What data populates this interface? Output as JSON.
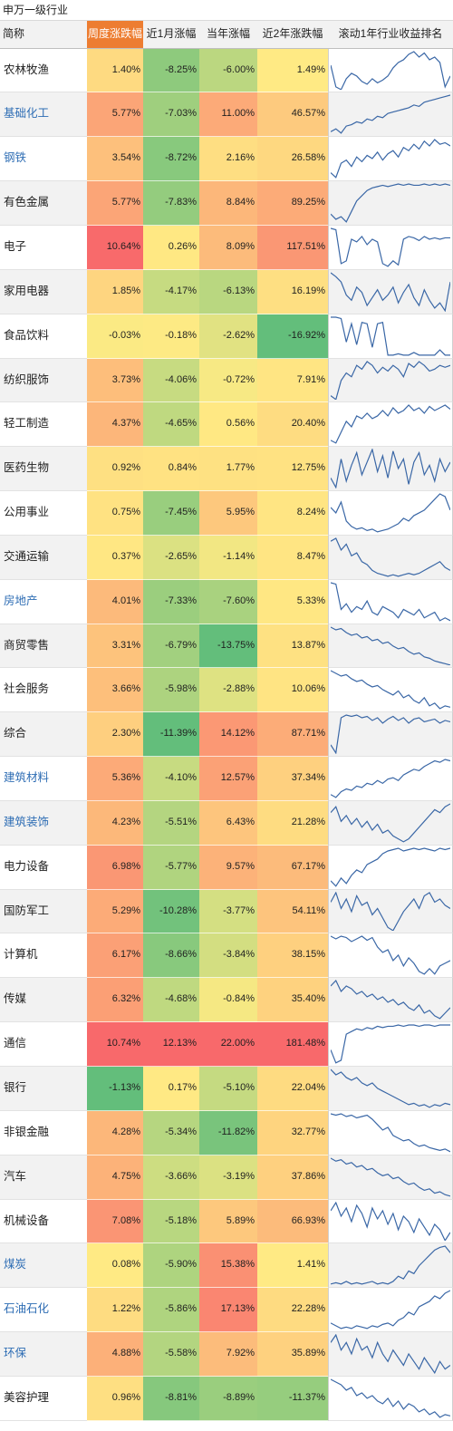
{
  "chart_data": {
    "type": "table",
    "title": "申万一级行业",
    "columns": [
      "简称",
      "周度涨跌幅",
      "近1月涨幅",
      "当年涨幅",
      "近2年涨跌幅",
      "滚动1年行业收益排名"
    ],
    "colors": {
      "scale_low": "#63BE7B",
      "scale_mid": "#FFEB84",
      "scale_high": "#F8696B",
      "header_highlight": "#ED7D31",
      "link_text": "#2E6DB4",
      "sparkline": "#3A67A6"
    },
    "rows": [
      {
        "name": "农林牧渔",
        "link": false,
        "values": [
          "1.40%",
          "-8.25%",
          "-6.00%",
          "1.49%"
        ],
        "rank_trend": [
          12,
          28,
          30,
          22,
          18,
          20,
          24,
          26,
          22,
          25,
          23,
          20,
          14,
          10,
          8,
          4,
          2,
          6,
          3,
          8,
          6,
          10,
          28,
          20
        ]
      },
      {
        "name": "基础化工",
        "link": true,
        "values": [
          "5.77%",
          "-7.03%",
          "11.00%",
          "46.57%"
        ],
        "rank_trend": [
          29,
          27,
          30,
          25,
          24,
          22,
          23,
          20,
          21,
          18,
          19,
          16,
          15,
          14,
          13,
          12,
          10,
          11,
          8,
          7,
          6,
          5,
          4,
          3
        ]
      },
      {
        "name": "钢铁",
        "link": true,
        "values": [
          "3.54%",
          "-8.72%",
          "2.16%",
          "26.58%"
        ],
        "rank_trend": [
          26,
          29,
          20,
          18,
          22,
          16,
          19,
          15,
          17,
          13,
          18,
          14,
          12,
          16,
          10,
          12,
          8,
          11,
          6,
          9,
          5,
          8,
          7,
          9
        ]
      },
      {
        "name": "有色金属",
        "link": false,
        "values": [
          "5.77%",
          "-7.83%",
          "8.84%",
          "89.25%"
        ],
        "rank_trend": [
          24,
          28,
          26,
          30,
          22,
          14,
          10,
          6,
          4,
          3,
          2,
          3,
          2,
          1,
          2,
          1,
          2,
          2,
          1,
          2,
          1,
          2,
          1,
          2
        ]
      },
      {
        "name": "电子",
        "link": false,
        "values": [
          "10.64%",
          "0.26%",
          "8.09%",
          "117.51%"
        ],
        "rank_trend": [
          2,
          3,
          28,
          26,
          10,
          12,
          8,
          14,
          10,
          12,
          28,
          30,
          26,
          29,
          10,
          8,
          9,
          11,
          8,
          10,
          9,
          10,
          9,
          9
        ]
      },
      {
        "name": "家用电器",
        "link": false,
        "values": [
          "1.85%",
          "-4.17%",
          "-6.13%",
          "16.19%"
        ],
        "rank_trend": [
          1,
          4,
          8,
          18,
          22,
          12,
          16,
          26,
          20,
          14,
          22,
          18,
          12,
          24,
          16,
          10,
          20,
          26,
          14,
          22,
          28,
          24,
          30,
          8
        ]
      },
      {
        "name": "食品饮料",
        "link": false,
        "values": [
          "-0.03%",
          "-0.18%",
          "-2.62%",
          "-16.92%"
        ],
        "rank_trend": [
          1,
          1,
          2,
          20,
          6,
          22,
          5,
          6,
          24,
          6,
          5,
          30,
          30,
          29,
          30,
          30,
          28,
          30,
          30,
          30,
          30,
          26,
          30,
          30
        ]
      },
      {
        "name": "纺织服饰",
        "link": false,
        "values": [
          "3.73%",
          "-4.06%",
          "-0.72%",
          "7.91%"
        ],
        "rank_trend": [
          28,
          30,
          20,
          16,
          18,
          12,
          14,
          10,
          12,
          16,
          13,
          15,
          12,
          14,
          18,
          11,
          13,
          10,
          12,
          15,
          14,
          12,
          13,
          12
        ]
      },
      {
        "name": "轻工制造",
        "link": false,
        "values": [
          "4.37%",
          "-4.65%",
          "0.56%",
          "20.40%"
        ],
        "rank_trend": [
          28,
          30,
          22,
          14,
          18,
          10,
          12,
          8,
          12,
          10,
          6,
          10,
          4,
          8,
          6,
          2,
          6,
          4,
          8,
          3,
          6,
          4,
          2,
          5
        ]
      },
      {
        "name": "医药生物",
        "link": false,
        "values": [
          "0.92%",
          "0.84%",
          "1.77%",
          "12.75%"
        ],
        "rank_trend": [
          20,
          26,
          8,
          22,
          12,
          4,
          18,
          10,
          2,
          16,
          6,
          20,
          3,
          14,
          8,
          24,
          10,
          4,
          18,
          12,
          22,
          8,
          16,
          10
        ]
      },
      {
        "name": "公用事业",
        "link": false,
        "values": [
          "0.75%",
          "-7.45%",
          "5.95%",
          "8.24%"
        ],
        "rank_trend": [
          12,
          16,
          8,
          22,
          26,
          28,
          27,
          29,
          28,
          30,
          29,
          28,
          26,
          24,
          20,
          22,
          18,
          16,
          14,
          10,
          6,
          2,
          4,
          14
        ]
      },
      {
        "name": "交通运输",
        "link": false,
        "values": [
          "0.37%",
          "-2.65%",
          "-1.14%",
          "8.47%"
        ],
        "rank_trend": [
          4,
          2,
          10,
          6,
          14,
          12,
          18,
          20,
          24,
          26,
          27,
          28,
          27,
          28,
          27,
          26,
          27,
          26,
          24,
          22,
          20,
          18,
          22,
          24
        ]
      },
      {
        "name": "房地产",
        "link": true,
        "values": [
          "4.01%",
          "-7.33%",
          "-7.60%",
          "5.33%"
        ],
        "rank_trend": [
          1,
          2,
          20,
          16,
          22,
          18,
          20,
          14,
          22,
          24,
          18,
          20,
          22,
          26,
          20,
          22,
          24,
          20,
          26,
          24,
          22,
          28,
          26,
          28
        ]
      },
      {
        "name": "商贸零售",
        "link": false,
        "values": [
          "3.31%",
          "-6.79%",
          "-13.75%",
          "13.87%"
        ],
        "rank_trend": [
          2,
          4,
          3,
          6,
          8,
          7,
          10,
          9,
          12,
          11,
          14,
          13,
          16,
          18,
          17,
          20,
          22,
          21,
          24,
          25,
          27,
          28,
          29,
          30
        ]
      },
      {
        "name": "社会服务",
        "link": false,
        "values": [
          "3.66%",
          "-5.98%",
          "-2.88%",
          "10.06%"
        ],
        "rank_trend": [
          2,
          4,
          6,
          5,
          8,
          10,
          9,
          12,
          14,
          13,
          16,
          18,
          20,
          17,
          22,
          20,
          24,
          26,
          22,
          28,
          26,
          30,
          28,
          29
        ]
      },
      {
        "name": "综合",
        "link": false,
        "values": [
          "2.30%",
          "-11.39%",
          "14.12%",
          "87.71%"
        ],
        "rank_trend": [
          24,
          30,
          4,
          2,
          3,
          2,
          4,
          3,
          6,
          4,
          8,
          5,
          3,
          6,
          4,
          8,
          5,
          4,
          7,
          6,
          5,
          8,
          6,
          7
        ]
      },
      {
        "name": "建筑材料",
        "link": true,
        "values": [
          "5.36%",
          "-4.10%",
          "12.57%",
          "37.34%"
        ],
        "rank_trend": [
          28,
          30,
          26,
          24,
          25,
          22,
          23,
          20,
          21,
          18,
          20,
          17,
          16,
          18,
          14,
          12,
          10,
          11,
          8,
          6,
          4,
          5,
          3,
          4
        ]
      },
      {
        "name": "建筑装饰",
        "link": true,
        "values": [
          "4.23%",
          "-5.51%",
          "6.43%",
          "21.28%"
        ],
        "rank_trend": [
          8,
          4,
          14,
          10,
          16,
          12,
          18,
          14,
          20,
          16,
          22,
          20,
          24,
          26,
          28,
          26,
          22,
          18,
          14,
          10,
          6,
          8,
          4,
          2
        ]
      },
      {
        "name": "电力设备",
        "link": false,
        "values": [
          "6.98%",
          "-5.77%",
          "9.57%",
          "67.17%"
        ],
        "rank_trend": [
          26,
          30,
          24,
          28,
          22,
          18,
          20,
          14,
          12,
          10,
          6,
          4,
          3,
          2,
          4,
          3,
          2,
          3,
          2,
          3,
          4,
          2,
          3,
          2
        ]
      },
      {
        "name": "国防军工",
        "link": false,
        "values": [
          "5.29%",
          "-10.28%",
          "-3.77%",
          "54.11%"
        ],
        "rank_trend": [
          10,
          4,
          14,
          8,
          16,
          6,
          12,
          10,
          18,
          14,
          20,
          26,
          28,
          22,
          16,
          12,
          8,
          14,
          6,
          4,
          10,
          8,
          12,
          14
        ]
      },
      {
        "name": "计算机",
        "link": false,
        "values": [
          "6.17%",
          "-8.66%",
          "-3.84%",
          "38.15%"
        ],
        "rank_trend": [
          2,
          4,
          2,
          3,
          6,
          4,
          2,
          5,
          3,
          10,
          14,
          12,
          20,
          16,
          24,
          18,
          22,
          28,
          30,
          26,
          30,
          24,
          22,
          20
        ]
      },
      {
        "name": "传媒",
        "link": false,
        "values": [
          "6.32%",
          "-4.68%",
          "-0.84%",
          "35.40%"
        ],
        "rank_trend": [
          6,
          2,
          10,
          6,
          8,
          12,
          10,
          14,
          12,
          16,
          14,
          18,
          16,
          20,
          18,
          22,
          24,
          20,
          26,
          24,
          28,
          30,
          26,
          22
        ]
      },
      {
        "name": "通信",
        "link": false,
        "values": [
          "10.74%",
          "12.13%",
          "22.00%",
          "181.48%"
        ],
        "rank_trend": [
          20,
          30,
          28,
          8,
          6,
          4,
          5,
          3,
          4,
          2,
          3,
          2,
          2,
          1,
          2,
          1,
          1,
          2,
          1,
          1,
          2,
          1,
          1,
          1
        ]
      },
      {
        "name": "银行",
        "link": false,
        "values": [
          "-1.13%",
          "0.17%",
          "-5.10%",
          "22.04%"
        ],
        "rank_trend": [
          2,
          6,
          4,
          8,
          10,
          8,
          12,
          14,
          12,
          16,
          18,
          20,
          22,
          24,
          26,
          28,
          27,
          29,
          28,
          30,
          28,
          29,
          27,
          28
        ]
      },
      {
        "name": "非银金融",
        "link": false,
        "values": [
          "4.28%",
          "-5.34%",
          "-11.82%",
          "32.77%"
        ],
        "rank_trend": [
          2,
          3,
          2,
          4,
          3,
          5,
          4,
          3,
          6,
          10,
          14,
          12,
          18,
          20,
          22,
          21,
          24,
          26,
          25,
          27,
          28,
          29,
          28,
          30
        ]
      },
      {
        "name": "汽车",
        "link": false,
        "values": [
          "4.75%",
          "-3.66%",
          "-3.19%",
          "37.86%"
        ],
        "rank_trend": [
          2,
          4,
          3,
          6,
          5,
          8,
          7,
          10,
          9,
          12,
          14,
          13,
          16,
          15,
          18,
          20,
          19,
          22,
          24,
          23,
          26,
          25,
          27,
          28
        ]
      },
      {
        "name": "机械设备",
        "link": false,
        "values": [
          "7.08%",
          "-5.18%",
          "5.89%",
          "66.93%"
        ],
        "rank_trend": [
          8,
          2,
          12,
          6,
          16,
          4,
          10,
          20,
          6,
          14,
          8,
          18,
          10,
          22,
          12,
          16,
          24,
          14,
          20,
          26,
          18,
          22,
          30,
          24
        ]
      },
      {
        "name": "煤炭",
        "link": true,
        "values": [
          "0.08%",
          "-5.90%",
          "15.38%",
          "1.41%"
        ],
        "rank_trend": [
          30,
          29,
          30,
          28,
          30,
          29,
          30,
          29,
          28,
          30,
          29,
          30,
          28,
          24,
          26,
          20,
          22,
          16,
          12,
          8,
          4,
          2,
          1,
          6
        ]
      },
      {
        "name": "石油石化",
        "link": true,
        "values": [
          "1.22%",
          "-5.86%",
          "17.13%",
          "22.28%"
        ],
        "rank_trend": [
          26,
          28,
          30,
          29,
          30,
          28,
          29,
          30,
          28,
          29,
          27,
          26,
          28,
          24,
          22,
          18,
          20,
          14,
          12,
          10,
          6,
          8,
          4,
          2
        ]
      },
      {
        "name": "环保",
        "link": true,
        "values": [
          "4.88%",
          "-5.58%",
          "7.92%",
          "35.89%"
        ],
        "rank_trend": [
          10,
          6,
          14,
          10,
          16,
          8,
          14,
          12,
          18,
          10,
          16,
          20,
          14,
          18,
          22,
          16,
          20,
          24,
          18,
          22,
          26,
          20,
          24,
          22
        ]
      },
      {
        "name": "美容护理",
        "link": false,
        "values": [
          "0.96%",
          "-8.81%",
          "-8.89%",
          "-11.37%"
        ],
        "rank_trend": [
          2,
          4,
          6,
          10,
          8,
          14,
          12,
          16,
          14,
          18,
          20,
          16,
          22,
          18,
          24,
          20,
          22,
          26,
          24,
          28,
          26,
          30,
          28,
          29
        ]
      }
    ]
  }
}
